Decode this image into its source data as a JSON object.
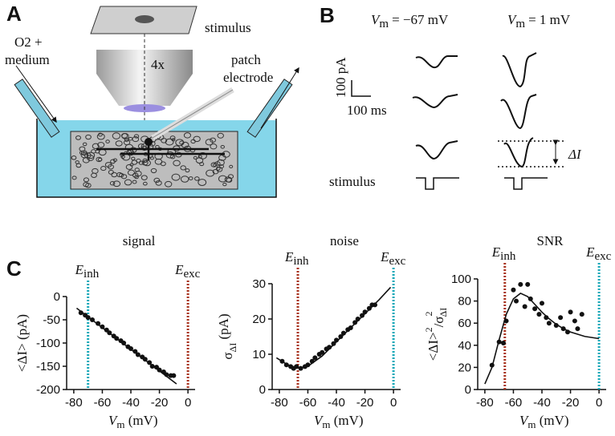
{
  "panel_a": {
    "label": "A",
    "stimulus": "stimulus",
    "objective": "4x",
    "gas": "O2 +",
    "medium": "medium",
    "patch": "patch",
    "electrode": "electrode"
  },
  "panel_b": {
    "label": "B",
    "left": {
      "symbol": "V",
      "sub": "m",
      "value": "= −67 mV"
    },
    "right": {
      "symbol": "V",
      "sub": "m",
      "value": "= 1 mV"
    },
    "scale_y": "100 pA",
    "scale_x": "100 ms",
    "stimulus": "stimulus",
    "delta": "ΔI"
  },
  "panel_c": {
    "label": "C"
  },
  "chart_data": [
    {
      "type": "scatter",
      "title": "signal",
      "x_label": {
        "symbol": "V",
        "sub": "m",
        "unit": " (mV)"
      },
      "y_label": [
        "<ΔI> (pA)"
      ],
      "x": [
        -75,
        -72,
        -70,
        -67,
        -63,
        -60,
        -57,
        -55,
        -52,
        -50,
        -47,
        -45,
        -42,
        -40,
        -37,
        -35,
        -32,
        -30,
        -27,
        -25,
        -22,
        -20,
        -17,
        -15,
        -12,
        -10
      ],
      "values": [
        -35,
        -40,
        -45,
        -50,
        -58,
        -65,
        -72,
        -78,
        -85,
        -90,
        -95,
        -100,
        -108,
        -112,
        -118,
        -125,
        -130,
        -135,
        -142,
        -150,
        -152,
        -158,
        -162,
        -168,
        -170,
        -170
      ],
      "fit": {
        "x": [
          -78,
          -8
        ],
        "values": [
          -25,
          -188
        ]
      },
      "reversal": [
        {
          "symbol": "E",
          "sub": "inh",
          "x": -70,
          "color": "#19a8b8"
        },
        {
          "symbol": "E",
          "sub": "exc",
          "x": 0,
          "color": "#a8321e"
        }
      ],
      "color": "#111",
      "xlim": [
        -85,
        5
      ],
      "xticks": [
        -80,
        -60,
        -40,
        -20,
        0
      ],
      "ylim": [
        -200,
        0
      ],
      "yticks": [
        0,
        -50,
        -100,
        -150,
        -200
      ]
    },
    {
      "type": "scatter",
      "title": "noise",
      "x_label": {
        "symbol": "V",
        "sub": "m",
        "unit": " (mV)"
      },
      "y_label": [
        "σ",
        "ΔI",
        " (pA)"
      ],
      "x": [
        -78,
        -75,
        -72,
        -70,
        -68,
        -65,
        -62,
        -60,
        -57,
        -55,
        -52,
        -50,
        -47,
        -45,
        -42,
        -40,
        -37,
        -35,
        -32,
        -30,
        -27,
        -25,
        -22,
        -20,
        -17,
        -15,
        -13
      ],
      "values": [
        8,
        7,
        6.5,
        6,
        6.5,
        6,
        6.5,
        7,
        8,
        9,
        10,
        10.5,
        11.5,
        12,
        13,
        14,
        15,
        16,
        17,
        17.5,
        19,
        20,
        21,
        22,
        23,
        24,
        24
      ],
      "fit": {
        "x": [
          -82,
          -75,
          -70,
          -65,
          -60,
          -50,
          -40,
          -30,
          -20,
          -10,
          -2
        ],
        "values": [
          9,
          7.2,
          6.4,
          6.2,
          6.6,
          9.5,
          13.5,
          17.5,
          21.5,
          25.5,
          29
        ]
      },
      "reversal": [
        {
          "symbol": "E",
          "sub": "inh",
          "x": -67,
          "color": "#a8321e"
        },
        {
          "symbol": "E",
          "sub": "exc",
          "x": 0,
          "color": "#19a8b8"
        }
      ],
      "color": "#111",
      "xlim": [
        -85,
        5
      ],
      "xticks": [
        -80,
        -60,
        -40,
        -20,
        0
      ],
      "ylim": [
        0,
        30
      ],
      "yticks": [
        0,
        10,
        20,
        30
      ]
    },
    {
      "type": "scatter",
      "title": "SNR",
      "x_label": {
        "symbol": "V",
        "sub": "m",
        "unit": " (mV)"
      },
      "y_label": [
        "<ΔI>",
        "2",
        "/σ",
        "2",
        "ΔI"
      ],
      "x": [
        -75,
        -70,
        -67,
        -65,
        -60,
        -58,
        -55,
        -52,
        -50,
        -48,
        -45,
        -42,
        -40,
        -37,
        -35,
        -30,
        -27,
        -25,
        -22,
        -20,
        -17,
        -15,
        -12
      ],
      "values": [
        22,
        43,
        42,
        62,
        90,
        80,
        95,
        75,
        95,
        82,
        73,
        68,
        78,
        65,
        60,
        58,
        65,
        55,
        52,
        70,
        62,
        55,
        68
      ],
      "fit": {
        "x": [
          -80,
          -75,
          -70,
          -65,
          -60,
          -55,
          -50,
          -45,
          -40,
          -35,
          -30,
          -25,
          -20,
          -15,
          -10,
          -5,
          0
        ],
        "values": [
          5,
          20,
          45,
          68,
          82,
          87,
          84,
          77,
          70,
          64,
          59,
          55,
          52,
          50,
          48,
          47,
          46
        ]
      },
      "reversal": [
        {
          "symbol": "E",
          "sub": "inh",
          "x": -66,
          "color": "#a8321e"
        },
        {
          "symbol": "E",
          "sub": "exc",
          "x": 0,
          "color": "#19a8b8"
        }
      ],
      "color": "#111",
      "xlim": [
        -85,
        5
      ],
      "xticks": [
        -80,
        -60,
        -40,
        -20,
        0
      ],
      "ylim": [
        0,
        100
      ],
      "yticks": [
        0,
        20,
        40,
        60,
        80,
        100
      ]
    }
  ]
}
